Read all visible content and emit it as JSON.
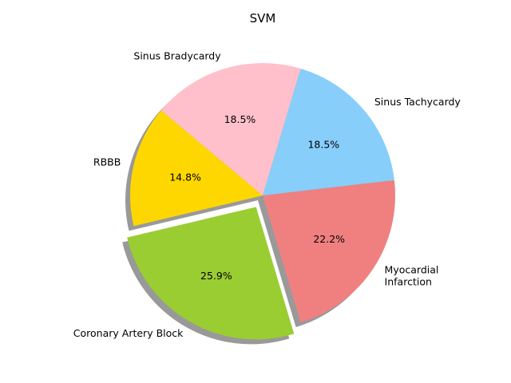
{
  "chart_data": {
    "type": "pie",
    "title": "SVM",
    "start_angle_deg": 140,
    "direction": "counterclockwise",
    "shadow": true,
    "slices": [
      {
        "label": "RBBB",
        "value": 14.8,
        "pct_label": "14.8%",
        "color": "#FFD700",
        "explode": false
      },
      {
        "label": "Coronary Artery Block",
        "value": 25.9,
        "pct_label": "25.9%",
        "color": "#9ACD32",
        "explode": true
      },
      {
        "label": "Myocardial\nInfarction",
        "value": 22.2,
        "pct_label": "22.2%",
        "color": "#F08080",
        "explode": false
      },
      {
        "label": "Sinus Tachycardy",
        "value": 18.5,
        "pct_label": "18.5%",
        "color": "#87CEFA",
        "explode": false
      },
      {
        "label": "Sinus Bradycardy",
        "value": 18.5,
        "pct_label": "18.5%",
        "color": "#FFC0CB",
        "explode": false
      }
    ]
  }
}
